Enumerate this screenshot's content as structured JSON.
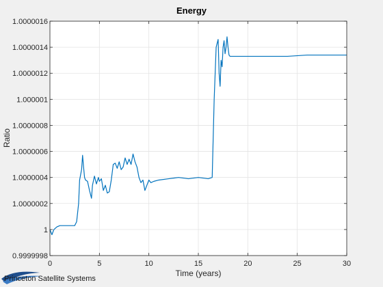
{
  "chart_data": {
    "type": "line",
    "title": "Energy",
    "xlabel": "Time (years)",
    "ylabel": "Ratio",
    "xlim": [
      0,
      30
    ],
    "ylim": [
      0.9999998,
      1.0000016
    ],
    "grid": true,
    "line_color": "#0072bd",
    "x_ticks": [
      0,
      5,
      10,
      15,
      20,
      25,
      30
    ],
    "x_tick_labels": [
      "0",
      "5",
      "10",
      "15",
      "20",
      "25",
      "30"
    ],
    "y_ticks": [
      0.9999998,
      1.0,
      1.0000002,
      1.0000004,
      1.0000006,
      1.0000008,
      1.000001,
      1.0000012,
      1.0000014,
      1.0000016
    ],
    "y_tick_labels": [
      "0.9999998",
      "1",
      "1.0000002",
      "1.0000004",
      "1.0000006",
      "1.0000008",
      "1.000001",
      "1.0000012",
      "1.0000014",
      "1.0000016"
    ],
    "series": [
      {
        "x": [
          0,
          0.2,
          0.4,
          0.7,
          1.0,
          1.5,
          2.0,
          2.5,
          2.7,
          2.9,
          3.0,
          3.2,
          3.3,
          3.4,
          3.5,
          3.6,
          3.8,
          4.0,
          4.2,
          4.3,
          4.5,
          4.7,
          4.9,
          5.0,
          5.2,
          5.4,
          5.6,
          5.8,
          6.0,
          6.2,
          6.4,
          6.6,
          6.8,
          7.0,
          7.2,
          7.4,
          7.6,
          7.8,
          8.0,
          8.2,
          8.4,
          8.6,
          8.8,
          9.0,
          9.2,
          9.4,
          9.6,
          9.8,
          10.0,
          10.2,
          10.5,
          11.0,
          12.0,
          13.0,
          14.0,
          15.0,
          16.0,
          16.4,
          16.6,
          16.8,
          17.0,
          17.1,
          17.2,
          17.3,
          17.4,
          17.5,
          17.6,
          17.7,
          17.8,
          17.9,
          18.0,
          18.1,
          18.2,
          18.3,
          18.5,
          19.0,
          20.0,
          22.0,
          24.0,
          26.0,
          28.0,
          30.0
        ],
        "y": [
          1.0,
          0.99999996,
          1.0,
          1.00000002,
          1.00000003,
          1.00000003,
          1.00000003,
          1.00000003,
          1.00000006,
          1.0000002,
          1.00000038,
          1.00000046,
          1.00000057,
          1.00000048,
          1.0000004,
          1.00000038,
          1.00000037,
          1.0000003,
          1.00000024,
          1.00000034,
          1.00000041,
          1.00000035,
          1.0000004,
          1.00000037,
          1.00000039,
          1.0000003,
          1.00000034,
          1.00000028,
          1.00000029,
          1.00000038,
          1.0000005,
          1.00000051,
          1.00000047,
          1.00000052,
          1.00000046,
          1.00000048,
          1.00000055,
          1.0000005,
          1.00000054,
          1.0000005,
          1.00000058,
          1.00000052,
          1.00000048,
          1.0000004,
          1.00000036,
          1.00000038,
          1.0000003,
          1.00000034,
          1.00000038,
          1.00000036,
          1.00000037,
          1.00000038,
          1.00000039,
          1.0000004,
          1.00000039,
          1.0000004,
          1.00000039,
          1.0000004,
          1.000001,
          1.0000014,
          1.00000146,
          1.0000012,
          1.0000011,
          1.0000013,
          1.00000125,
          1.0000014,
          1.00000145,
          1.00000135,
          1.0000014,
          1.00000148,
          1.0000014,
          1.00000134,
          1.00000133,
          1.00000133,
          1.00000133,
          1.00000133,
          1.00000133,
          1.00000133,
          1.00000133,
          1.00000134,
          1.00000134,
          1.00000134
        ]
      }
    ]
  },
  "logo": {
    "text": "Princeton Satellite Systems"
  }
}
